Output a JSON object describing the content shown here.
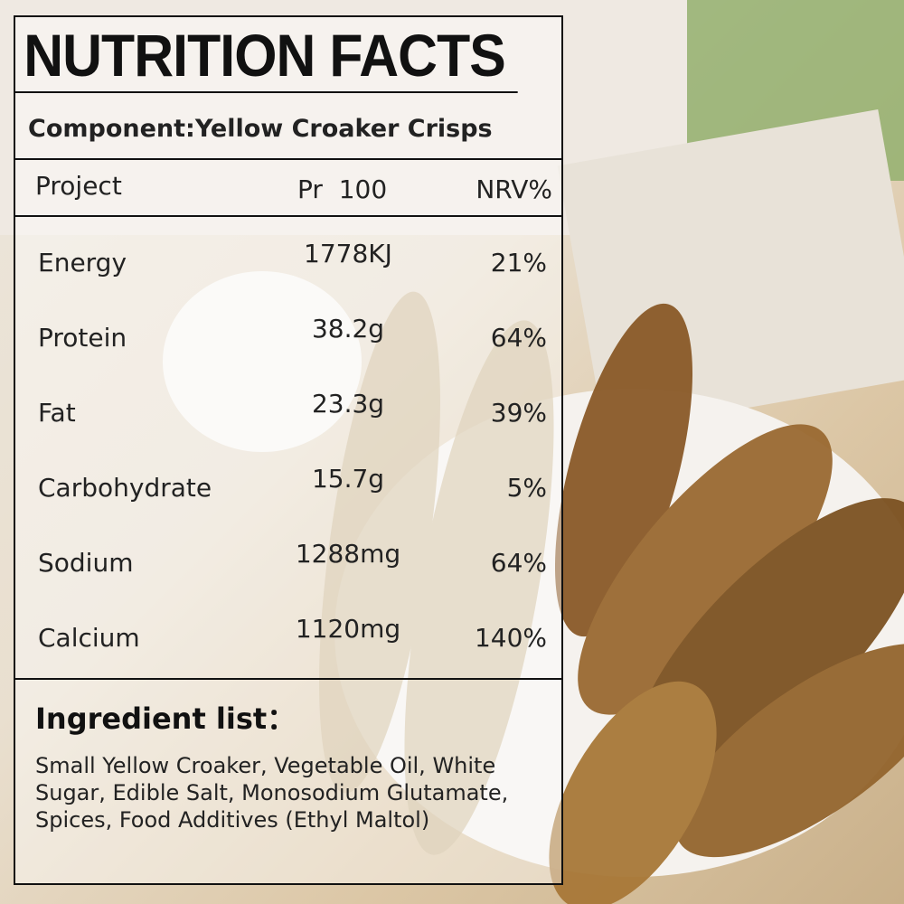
{
  "title": "NUTRITION FACTS",
  "component": "Component:Yellow Croaker Crisps",
  "table": {
    "header": [
      "Project",
      "Pr  100",
      "NRV%"
    ],
    "rows": [
      [
        "Energy",
        "1778KJ",
        "21%"
      ],
      [
        "Protein",
        "38.2g",
        "64%"
      ],
      [
        "Fat",
        "23.3g",
        "39%"
      ],
      [
        "Carbohydrate",
        "15.7g",
        "5%"
      ],
      [
        "Sodium",
        "1288mg",
        "64%"
      ],
      [
        "Calcium",
        "1120mg",
        "140%"
      ]
    ]
  },
  "ingredients": {
    "label": "Ingredient list：",
    "text": "Small Yellow Croaker, Vegetable Oil, White Sugar, Edible Salt, Monosodium Glutamate, Spices, Food Additives (Ethyl Maltol)"
  }
}
